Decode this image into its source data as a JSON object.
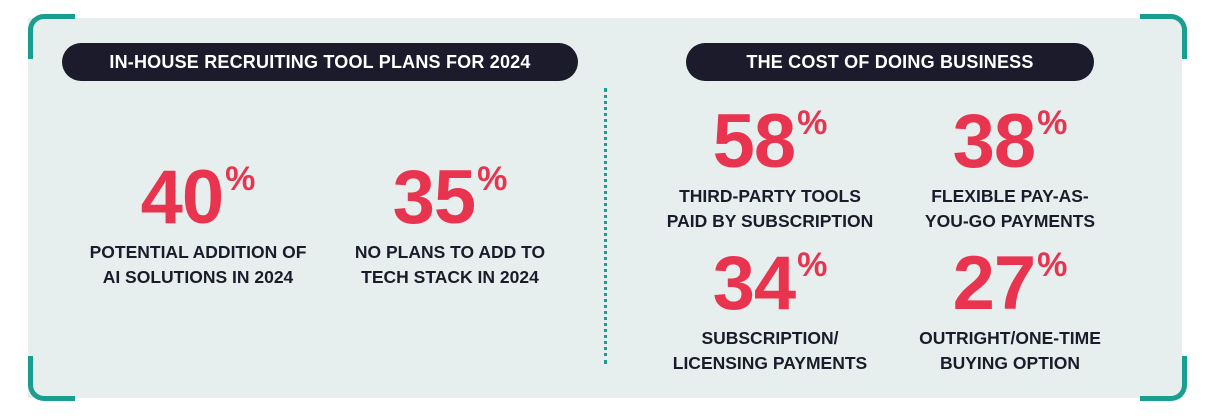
{
  "colors": {
    "panel_bg": "#e7efee",
    "accent_teal": "#1a9e8f",
    "stat_red": "#e8344f",
    "pill_dark": "#1b1b2b",
    "text_dark": "#1b1b2b"
  },
  "left": {
    "title": "IN-HOUSE RECRUITING TOOL PLANS FOR 2024",
    "stats": [
      {
        "value": "40",
        "unit": "%",
        "line1": "POTENTIAL ADDITION OF",
        "line2": "AI SOLUTIONS IN 2024"
      },
      {
        "value": "35",
        "unit": "%",
        "line1": "NO PLANS TO ADD TO",
        "line2": "TECH STACK IN 2024"
      }
    ]
  },
  "right": {
    "title": "THE COST OF DOING BUSINESS",
    "stats": [
      {
        "value": "58",
        "unit": "%",
        "line1": "THIRD-PARTY TOOLS",
        "line2": "PAID BY SUBSCRIPTION"
      },
      {
        "value": "38",
        "unit": "%",
        "line1": "FLEXIBLE PAY-AS-",
        "line2": "YOU-GO PAYMENTS"
      },
      {
        "value": "34",
        "unit": "%",
        "line1": "SUBSCRIPTION/",
        "line2": "LICENSING PAYMENTS"
      },
      {
        "value": "27",
        "unit": "%",
        "line1": "OUTRIGHT/ONE-TIME",
        "line2": "BUYING OPTION"
      }
    ]
  }
}
